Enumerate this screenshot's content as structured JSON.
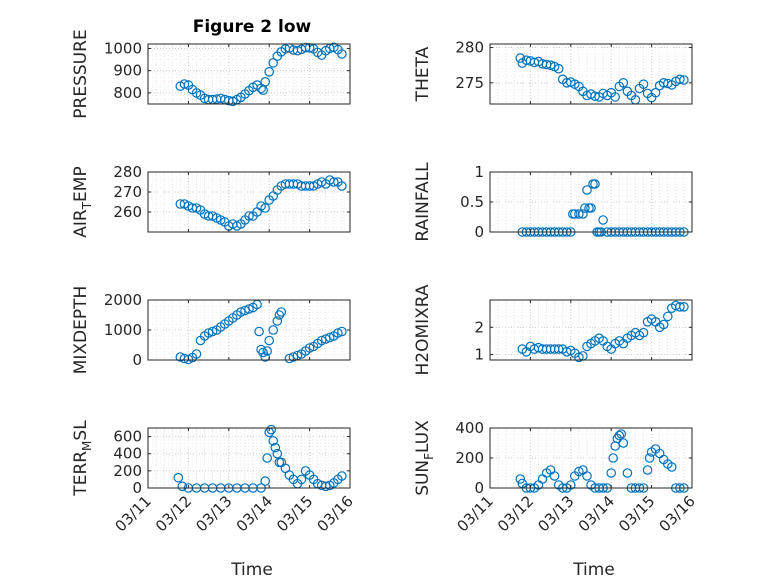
{
  "figure": {
    "marker_color": "#0072BD",
    "x_ticks": [
      "03/11",
      "03/12",
      "03/13",
      "03/14",
      "03/15",
      "03/16"
    ],
    "xlabel_text": "Time"
  },
  "chart_data": [
    {
      "type": "scatter",
      "title": "Figure 2 low",
      "ylabel": "PRESSURE",
      "ylim": [
        750,
        1020
      ],
      "xlim": [
        0,
        5
      ],
      "y_ticks": [
        800,
        900,
        1000
      ],
      "x": [
        0.8,
        0.9,
        1.0,
        1.1,
        1.2,
        1.3,
        1.4,
        1.5,
        1.6,
        1.7,
        1.8,
        1.9,
        2.0,
        2.1,
        2.2,
        2.3,
        2.4,
        2.5,
        2.6,
        2.7,
        2.8,
        2.85,
        2.9,
        3.0,
        3.1,
        3.2,
        3.3,
        3.4,
        3.5,
        3.6,
        3.7,
        3.8,
        3.9,
        4.0,
        4.1,
        4.2,
        4.3,
        4.4,
        4.5,
        4.6,
        4.7,
        4.8
      ],
      "values": [
        830,
        840,
        835,
        815,
        800,
        790,
        775,
        770,
        770,
        772,
        775,
        770,
        765,
        762,
        770,
        780,
        795,
        810,
        825,
        835,
        820,
        812,
        850,
        895,
        935,
        965,
        985,
        998,
        1002,
        993,
        990,
        996,
        1004,
        1003,
        998,
        982,
        970,
        990,
        1000,
        1005,
        995,
        975
      ]
    },
    {
      "type": "scatter",
      "title": "",
      "ylabel": "THETA",
      "ylim": [
        272,
        280.5
      ],
      "xlim": [
        0,
        5
      ],
      "y_ticks": [
        275,
        280
      ],
      "x": [
        0.75,
        0.8,
        0.9,
        1.0,
        1.1,
        1.2,
        1.3,
        1.4,
        1.5,
        1.6,
        1.7,
        1.8,
        1.9,
        2.0,
        2.1,
        2.2,
        2.3,
        2.4,
        2.5,
        2.6,
        2.7,
        2.8,
        2.9,
        3.0,
        3.1,
        3.2,
        3.3,
        3.4,
        3.5,
        3.6,
        3.7,
        3.8,
        3.9,
        4.0,
        4.1,
        4.2,
        4.3,
        4.4,
        4.5,
        4.6,
        4.7,
        4.8
      ],
      "values": [
        278.5,
        277.8,
        278.2,
        278.1,
        277.9,
        278.0,
        277.7,
        277.6,
        277.5,
        277.3,
        277.0,
        275.5,
        275.0,
        275.1,
        274.8,
        274.5,
        273.8,
        273.2,
        273.4,
        273.1,
        273.0,
        273.5,
        273.2,
        273.6,
        273.0,
        274.5,
        275.0,
        273.8,
        273.2,
        272.6,
        274.2,
        274.8,
        273.5,
        272.9,
        273.6,
        274.6,
        275.0,
        274.9,
        274.7,
        275.2,
        275.5,
        275.4
      ]
    },
    {
      "type": "scatter",
      "title": "",
      "ylabel": "AIR_TEMP",
      "ylim": [
        250,
        280
      ],
      "xlim": [
        0,
        5
      ],
      "y_ticks": [
        260,
        270,
        280
      ],
      "x": [
        0.8,
        0.9,
        1.0,
        1.1,
        1.2,
        1.3,
        1.4,
        1.5,
        1.6,
        1.7,
        1.8,
        1.9,
        2.0,
        2.1,
        2.2,
        2.3,
        2.4,
        2.5,
        2.6,
        2.7,
        2.8,
        2.9,
        3.0,
        3.1,
        3.2,
        3.3,
        3.4,
        3.5,
        3.6,
        3.7,
        3.8,
        3.9,
        4.0,
        4.1,
        4.2,
        4.3,
        4.4,
        4.5,
        4.6,
        4.7,
        4.8
      ],
      "values": [
        264,
        264,
        263,
        262,
        262,
        261,
        259,
        258,
        258,
        257,
        256,
        255,
        253,
        254,
        253,
        254,
        256,
        258,
        258,
        260,
        263,
        262,
        266,
        268,
        271,
        273,
        274,
        274,
        274,
        274,
        273,
        273,
        273,
        273,
        274,
        275,
        274,
        276,
        275,
        275,
        273
      ]
    },
    {
      "type": "scatter",
      "title": "",
      "ylabel": "RAINFALL",
      "ylim": [
        0,
        1
      ],
      "xlim": [
        0,
        5
      ],
      "y_ticks": [
        0,
        0.5,
        1
      ],
      "x": [
        0.8,
        0.9,
        1.0,
        1.1,
        1.2,
        1.3,
        1.4,
        1.5,
        1.6,
        1.7,
        1.8,
        1.9,
        2.0,
        2.05,
        2.1,
        2.2,
        2.3,
        2.35,
        2.4,
        2.45,
        2.5,
        2.55,
        2.6,
        2.65,
        2.7,
        2.75,
        2.8,
        2.9,
        3.0,
        3.1,
        3.2,
        3.3,
        3.4,
        3.5,
        3.6,
        3.7,
        3.8,
        3.9,
        4.0,
        4.1,
        4.2,
        4.3,
        4.4,
        4.5,
        4.6,
        4.7,
        4.8
      ],
      "values": [
        0,
        0,
        0,
        0,
        0,
        0,
        0,
        0,
        0,
        0,
        0,
        0,
        0,
        0.3,
        0.3,
        0.3,
        0.3,
        0.4,
        0.7,
        0.4,
        0.4,
        0.8,
        0.8,
        0,
        0,
        0,
        0.2,
        0,
        0,
        0,
        0,
        0,
        0,
        0,
        0,
        0,
        0,
        0,
        0,
        0,
        0,
        0,
        0,
        0,
        0,
        0,
        0
      ]
    },
    {
      "type": "scatter",
      "title": "",
      "ylabel": "MIXDEPTH",
      "ylim": [
        0,
        2000
      ],
      "xlim": [
        0,
        5
      ],
      "y_ticks": [
        0,
        1000,
        2000
      ],
      "x": [
        0.8,
        0.9,
        1.0,
        1.1,
        1.2,
        1.3,
        1.4,
        1.5,
        1.6,
        1.7,
        1.8,
        1.9,
        2.0,
        2.1,
        2.2,
        2.3,
        2.4,
        2.5,
        2.6,
        2.7,
        2.75,
        2.8,
        2.85,
        2.9,
        2.95,
        3.0,
        3.1,
        3.2,
        3.25,
        3.3,
        3.5,
        3.6,
        3.7,
        3.8,
        3.9,
        4.0,
        4.1,
        4.2,
        4.3,
        4.4,
        4.5,
        4.6,
        4.7,
        4.8
      ],
      "values": [
        100,
        50,
        20,
        80,
        200,
        650,
        800,
        900,
        950,
        1000,
        1100,
        1200,
        1300,
        1400,
        1500,
        1600,
        1650,
        1700,
        1750,
        1850,
        950,
        350,
        250,
        100,
        300,
        650,
        1000,
        1300,
        1500,
        1600,
        50,
        100,
        150,
        200,
        300,
        400,
        450,
        550,
        650,
        700,
        750,
        800,
        900,
        950
      ]
    },
    {
      "type": "scatter",
      "title": "",
      "ylabel": "H2OMIXRA",
      "ylim": [
        0.8,
        3
      ],
      "xlim": [
        0,
        5
      ],
      "y_ticks": [
        1,
        2
      ],
      "x": [
        0.8,
        0.9,
        1.0,
        1.1,
        1.2,
        1.3,
        1.4,
        1.5,
        1.6,
        1.7,
        1.8,
        1.9,
        2.0,
        2.1,
        2.2,
        2.3,
        2.4,
        2.5,
        2.6,
        2.7,
        2.8,
        2.9,
        3.0,
        3.1,
        3.2,
        3.3,
        3.4,
        3.5,
        3.6,
        3.7,
        3.8,
        3.9,
        4.0,
        4.1,
        4.2,
        4.3,
        4.4,
        4.5,
        4.6,
        4.7,
        4.8
      ],
      "values": [
        1.2,
        1.1,
        1.3,
        1.2,
        1.25,
        1.2,
        1.2,
        1.2,
        1.2,
        1.2,
        1.2,
        1.1,
        1.15,
        1.05,
        0.9,
        0.95,
        1.3,
        1.4,
        1.5,
        1.6,
        1.5,
        1.3,
        1.2,
        1.4,
        1.5,
        1.4,
        1.6,
        1.7,
        1.8,
        1.7,
        1.8,
        2.2,
        2.3,
        2.2,
        2.0,
        2.1,
        2.4,
        2.7,
        2.8,
        2.75,
        2.75
      ]
    },
    {
      "type": "scatter",
      "title": "",
      "ylabel": "TERR_MSL",
      "ylim": [
        0,
        700
      ],
      "xlim": [
        0,
        5
      ],
      "y_ticks": [
        0,
        200,
        400,
        600
      ],
      "x": [
        0.75,
        0.85,
        1.0,
        1.2,
        1.4,
        1.6,
        1.8,
        2.0,
        2.2,
        2.4,
        2.6,
        2.8,
        2.9,
        2.95,
        3.0,
        3.05,
        3.1,
        3.15,
        3.2,
        3.25,
        3.3,
        3.4,
        3.5,
        3.6,
        3.7,
        3.8,
        3.9,
        4.0,
        4.1,
        4.2,
        4.3,
        4.4,
        4.5,
        4.6,
        4.7,
        4.8
      ],
      "values": [
        120,
        20,
        0,
        0,
        0,
        0,
        0,
        0,
        0,
        0,
        0,
        0,
        80,
        350,
        650,
        680,
        550,
        470,
        400,
        300,
        300,
        230,
        150,
        100,
        50,
        100,
        200,
        150,
        100,
        50,
        30,
        20,
        30,
        60,
        100,
        140
      ]
    },
    {
      "type": "scatter",
      "title": "",
      "ylabel": "SUN_FLUX",
      "ylim": [
        0,
        400
      ],
      "xlim": [
        0,
        5
      ],
      "y_ticks": [
        0,
        200,
        400
      ],
      "x": [
        0.75,
        0.8,
        0.9,
        1.0,
        1.1,
        1.2,
        1.3,
        1.4,
        1.5,
        1.6,
        1.7,
        1.8,
        1.9,
        2.0,
        2.1,
        2.2,
        2.3,
        2.4,
        2.5,
        2.6,
        2.7,
        2.8,
        2.9,
        3.0,
        3.05,
        3.1,
        3.15,
        3.2,
        3.25,
        3.3,
        3.4,
        3.5,
        3.6,
        3.7,
        3.8,
        3.9,
        3.95,
        4.0,
        4.1,
        4.2,
        4.3,
        4.4,
        4.5,
        4.6,
        4.7,
        4.8
      ],
      "values": [
        60,
        30,
        0,
        0,
        0,
        20,
        60,
        100,
        120,
        80,
        20,
        0,
        0,
        20,
        80,
        110,
        120,
        80,
        20,
        0,
        0,
        0,
        0,
        100,
        200,
        280,
        330,
        350,
        360,
        300,
        100,
        0,
        0,
        0,
        0,
        120,
        200,
        240,
        260,
        230,
        190,
        160,
        140,
        0,
        0,
        0
      ]
    }
  ]
}
